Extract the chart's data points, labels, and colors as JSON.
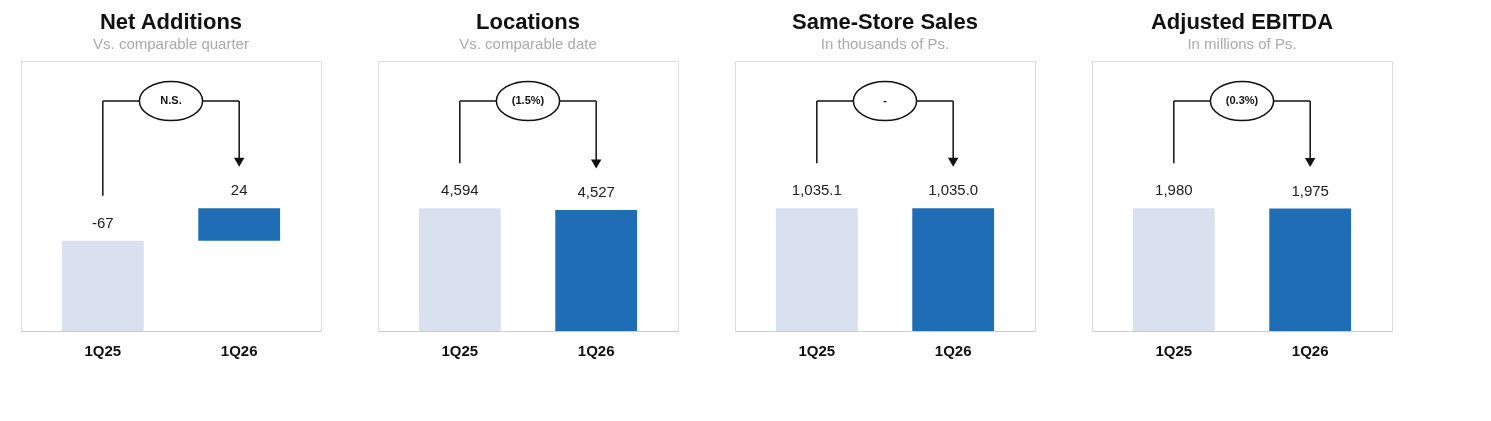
{
  "chart_data": [
    {
      "type": "bar",
      "title": "Net Additions",
      "subtitle": "Vs. comparable quarter",
      "categories": [
        "1Q25",
        "1Q26"
      ],
      "values": [
        -67,
        24
      ],
      "colors": [
        "#d9e1f0",
        "#1f6eb5"
      ],
      "value_labels": [
        "-67",
        "24"
      ],
      "annotations": [
        "N.S."
      ]
    },
    {
      "type": "bar",
      "title": "Locations",
      "subtitle": "Vs. comparable date",
      "categories": [
        "1Q25",
        "1Q26"
      ],
      "values": [
        4594,
        4527
      ],
      "colors": [
        "#d9e1f0",
        "#1f6eb5"
      ],
      "value_labels": [
        "4,594",
        "4,527"
      ],
      "annotations": [
        "(1.5%)"
      ]
    },
    {
      "type": "bar",
      "title": "Same-Store Sales",
      "subtitle": "In thousands of Ps.",
      "categories": [
        "1Q25",
        "1Q26"
      ],
      "values": [
        1035.1,
        1035.0
      ],
      "colors": [
        "#d9e1f0",
        "#1f6eb5"
      ],
      "value_labels": [
        "1,035.1",
        "1,035.0"
      ],
      "annotations": [
        "-"
      ]
    },
    {
      "type": "bar",
      "title": "Adjusted EBITDA",
      "subtitle": "In millions of Ps.",
      "categories": [
        "1Q25",
        "1Q26"
      ],
      "values": [
        1980,
        1975
      ],
      "colors": [
        "#d9e1f0",
        "#1f6eb5"
      ],
      "value_labels": [
        "1,980",
        "1,975"
      ],
      "annotations": [
        "(0.3%)"
      ]
    }
  ]
}
